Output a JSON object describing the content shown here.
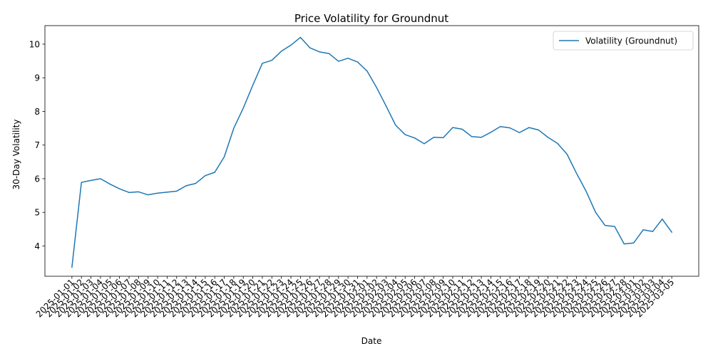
{
  "chart_data": {
    "type": "line",
    "title": "Price Volatility for Groundnut",
    "xlabel": "Date",
    "ylabel": "30-Day Volatility",
    "ylim": [
      3.1,
      10.55
    ],
    "yticks": [
      4,
      5,
      6,
      7,
      8,
      9,
      10
    ],
    "grid": false,
    "legend_position": "top-right",
    "categories": [
      "2025-01-01",
      "2025-01-02",
      "2025-01-03",
      "2025-01-04",
      "2025-01-05",
      "2025-01-06",
      "2025-01-07",
      "2025-01-08",
      "2025-01-09",
      "2025-01-10",
      "2025-01-11",
      "2025-01-12",
      "2025-01-13",
      "2025-01-14",
      "2025-01-15",
      "2025-01-16",
      "2025-01-17",
      "2025-01-18",
      "2025-01-19",
      "2025-01-20",
      "2025-01-21",
      "2025-01-22",
      "2025-01-23",
      "2025-01-24",
      "2025-01-25",
      "2025-01-26",
      "2025-01-27",
      "2025-01-28",
      "2025-01-29",
      "2025-01-30",
      "2025-01-31",
      "2025-02-01",
      "2025-02-02",
      "2025-02-03",
      "2025-02-04",
      "2025-02-05",
      "2025-02-06",
      "2025-02-07",
      "2025-02-08",
      "2025-02-09",
      "2025-02-10",
      "2025-02-11",
      "2025-02-12",
      "2025-02-13",
      "2025-02-14",
      "2025-02-15",
      "2025-02-16",
      "2025-02-17",
      "2025-02-18",
      "2025-02-19",
      "2025-02-20",
      "2025-02-21",
      "2025-02-22",
      "2025-02-23",
      "2025-02-24",
      "2025-02-25",
      "2025-02-26",
      "2025-02-27",
      "2025-02-28",
      "2025-03-01",
      "2025-03-02",
      "2025-03-03",
      "2025-03-04",
      "2025-03-05"
    ],
    "series": [
      {
        "name": "Volatility (Groundnut)",
        "color": "#1f77b4",
        "values": [
          3.37,
          5.89,
          5.95,
          6.0,
          5.84,
          5.7,
          5.59,
          5.61,
          5.52,
          5.57,
          5.6,
          5.63,
          5.79,
          5.86,
          6.09,
          6.19,
          6.65,
          7.5,
          8.1,
          8.78,
          9.43,
          9.52,
          9.79,
          9.97,
          10.2,
          9.89,
          9.77,
          9.72,
          9.49,
          9.58,
          9.47,
          9.2,
          8.71,
          8.16,
          7.59,
          7.31,
          7.21,
          7.04,
          7.23,
          7.22,
          7.52,
          7.47,
          7.25,
          7.23,
          7.38,
          7.55,
          7.51,
          7.37,
          7.52,
          7.45,
          7.23,
          7.05,
          6.73,
          6.16,
          5.63,
          5.0,
          4.61,
          4.58,
          4.06,
          4.09,
          4.48,
          4.43,
          4.8,
          4.41
        ]
      }
    ]
  }
}
